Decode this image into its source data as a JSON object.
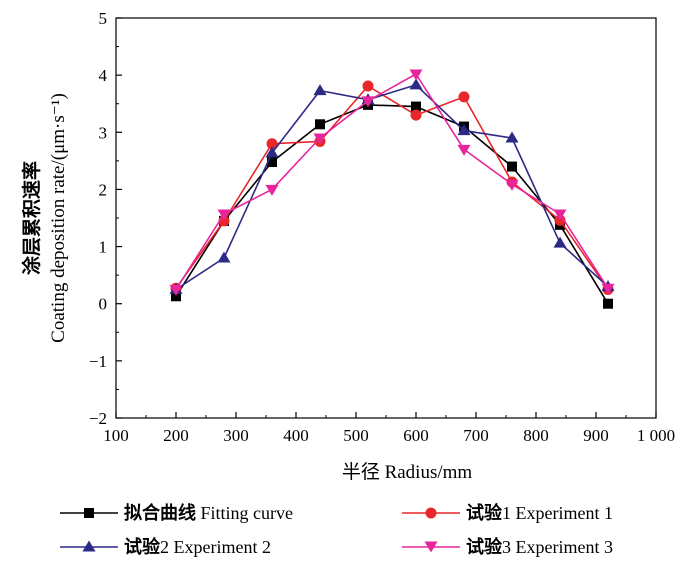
{
  "chart_data": {
    "type": "line",
    "title": "",
    "xlabel": "半径 Radius/mm",
    "ylabel_zh": "涂层累积速率",
    "ylabel_en": "Coating deposition rate/(μm·s⁻¹)",
    "xlim": [
      100,
      1000
    ],
    "ylim": [
      -2,
      5
    ],
    "x_ticks": [
      100,
      200,
      300,
      400,
      500,
      600,
      700,
      800,
      900,
      1000
    ],
    "x_tick_labels": [
      "100",
      "200",
      "300",
      "400",
      "500",
      "600",
      "700",
      "800",
      "900",
      "1 000"
    ],
    "y_ticks": [
      -2,
      -1,
      0,
      1,
      2,
      3,
      4,
      5
    ],
    "y_tick_labels": [
      "−2",
      "−1",
      "0",
      "1",
      "2",
      "3",
      "4",
      "5"
    ],
    "grid": false,
    "legend_position": "bottom",
    "x": [
      200,
      280,
      360,
      440,
      520,
      600,
      680,
      760,
      840,
      920
    ],
    "series": [
      {
        "name_zh": "拟合曲线",
        "name_en": "Fitting curve",
        "color": "#000000",
        "marker": "square",
        "values": [
          0.13,
          1.45,
          2.48,
          3.14,
          3.48,
          3.45,
          3.1,
          2.4,
          1.38,
          0.0
        ]
      },
      {
        "name_zh": "试验",
        "name_num": "1",
        "name_en": "Experiment 1",
        "color": "#e8272b",
        "marker": "circle",
        "values": [
          0.27,
          1.45,
          2.8,
          2.84,
          3.81,
          3.3,
          3.62,
          2.13,
          1.46,
          0.25
        ]
      },
      {
        "name_zh": "试验",
        "name_num": "2",
        "name_en": "Experiment 2",
        "color": "#2d2a86",
        "marker": "triangle-up",
        "values": [
          0.25,
          0.8,
          2.64,
          3.73,
          3.57,
          3.83,
          3.03,
          2.9,
          1.06,
          0.3
        ]
      },
      {
        "name_zh": "试验",
        "name_num": "3",
        "name_en": "Experiment 3",
        "color": "#e8259b",
        "marker": "triangle-down",
        "values": [
          0.25,
          1.57,
          2.0,
          2.9,
          3.55,
          4.02,
          2.7,
          2.09,
          1.57,
          0.27
        ]
      }
    ]
  }
}
